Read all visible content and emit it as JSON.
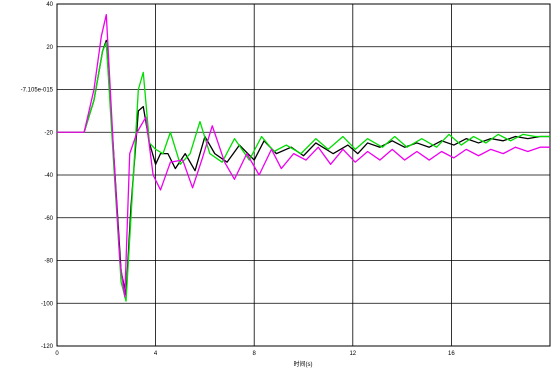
{
  "chart_data": {
    "type": "line",
    "title": "",
    "xlabel": "时间(s)",
    "ylabel": "",
    "xlim": [
      0,
      20
    ],
    "ylim": [
      -120,
      40
    ],
    "grid": true,
    "x_ticks": [
      0,
      4,
      8,
      12,
      16
    ],
    "x_tick_labels": [
      "0",
      "4",
      "8",
      "12",
      "16"
    ],
    "y_ticks": [
      40,
      20,
      0,
      -20,
      -40,
      -60,
      -80,
      -100,
      -120
    ],
    "y_tick_labels": [
      "40",
      "20",
      "-7.105e-015",
      "-20",
      "-40",
      "-60",
      "-80",
      "-100",
      "-120"
    ],
    "series": [
      {
        "color": "#000000",
        "x": [
          0.0,
          1.0,
          1.1,
          1.5,
          1.85,
          2.0,
          2.3,
          2.6,
          2.8,
          3.0,
          3.3,
          3.5,
          3.75,
          4.0,
          4.2,
          4.5,
          4.8,
          5.2,
          5.6,
          6.0,
          6.4,
          6.9,
          7.4,
          8.0,
          8.4,
          8.9,
          9.5,
          10.0,
          10.5,
          11.2,
          11.8,
          12.2,
          12.6,
          13.1,
          13.6,
          14.1,
          14.6,
          15.1,
          15.6,
          16.1,
          16.6,
          17.1,
          17.6,
          18.1,
          18.6,
          19.1,
          19.6,
          20.0
        ],
        "y": [
          -20,
          -20,
          -20,
          -5,
          18,
          23,
          -30,
          -85,
          -96,
          -55,
          -10,
          -8,
          -25,
          -35,
          -30,
          -30,
          -37,
          -30,
          -38,
          -22,
          -30,
          -34,
          -26,
          -33,
          -24,
          -30,
          -27,
          -31,
          -25,
          -30,
          -26,
          -30,
          -25,
          -27,
          -24,
          -27,
          -25,
          -27,
          -24,
          -26,
          -23,
          -25,
          -23,
          -24,
          -22,
          -23,
          -22,
          -22
        ]
      },
      {
        "color": "#00dd00",
        "x": [
          0.0,
          1.0,
          1.1,
          1.5,
          1.85,
          2.0,
          2.3,
          2.6,
          2.8,
          3.0,
          3.3,
          3.5,
          3.75,
          4.0,
          4.3,
          4.6,
          5.0,
          5.4,
          5.8,
          6.2,
          6.7,
          7.2,
          7.8,
          8.3,
          8.8,
          9.3,
          9.9,
          10.5,
          11.0,
          11.6,
          12.1,
          12.6,
          13.2,
          13.7,
          14.2,
          14.8,
          15.4,
          15.9,
          16.4,
          16.9,
          17.4,
          17.9,
          18.4,
          18.9,
          19.4,
          20.0
        ],
        "y": [
          -20,
          -20,
          -20,
          -5,
          18,
          22,
          -35,
          -90,
          -99,
          -60,
          0,
          8,
          -25,
          -28,
          -30,
          -20,
          -35,
          -30,
          -15,
          -30,
          -34,
          -23,
          -33,
          -22,
          -29,
          -26,
          -30,
          -23,
          -28,
          -22,
          -28,
          -23,
          -27,
          -22,
          -27,
          -23,
          -27,
          -21,
          -26,
          -22,
          -25,
          -21,
          -24,
          -21,
          -22,
          -22
        ]
      },
      {
        "color": "#ee00ee",
        "x": [
          0.0,
          1.0,
          1.1,
          1.5,
          1.8,
          2.0,
          2.3,
          2.55,
          2.75,
          2.95,
          3.25,
          3.6,
          3.9,
          4.2,
          4.6,
          5.1,
          5.5,
          5.9,
          6.3,
          6.8,
          7.2,
          7.7,
          8.2,
          8.7,
          9.1,
          9.6,
          10.1,
          10.6,
          11.1,
          11.6,
          12.1,
          12.6,
          13.1,
          13.6,
          14.1,
          14.6,
          15.1,
          15.6,
          16.1,
          16.6,
          17.1,
          17.6,
          18.1,
          18.6,
          19.1,
          19.6,
          20.0
        ],
        "y": [
          -20,
          -20,
          -20,
          0,
          25,
          35,
          -30,
          -80,
          -97,
          -30,
          -20,
          -13,
          -40,
          -47,
          -34,
          -33,
          -46,
          -32,
          -17,
          -34,
          -42,
          -30,
          -40,
          -28,
          -37,
          -30,
          -33,
          -27,
          -35,
          -28,
          -34,
          -29,
          -33,
          -28,
          -33,
          -29,
          -33,
          -29,
          -32,
          -28,
          -31,
          -28,
          -30,
          -27,
          -29,
          -27,
          -27
        ]
      }
    ]
  }
}
